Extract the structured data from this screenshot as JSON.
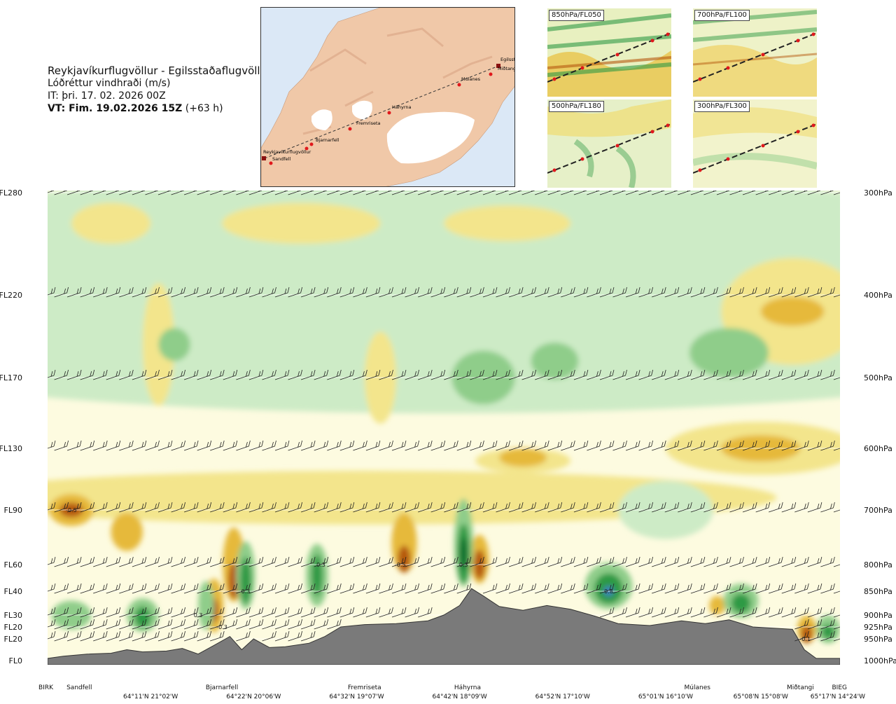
{
  "header": {
    "title": "Reykjavíkurflugvöllur - Egilsstaðaflugvöllur",
    "subtitle": "Lóðréttur vindhraði (m/s)",
    "it_line": "IT: þri. 17. 02. 2026 00Z",
    "vt_bold": "VT: Fim. 19.02.2026 15Z",
    "vt_offset": "(+63 h)"
  },
  "route_map": {
    "stations": [
      "Reykjavíkurflugvöllur",
      "Sandfell",
      "Bjarnarfell",
      "Fremriseta",
      "Háhyrna",
      "Múlanes",
      "Miðtangi",
      "Egilsst"
    ]
  },
  "insets": [
    {
      "label": "850hPa/FL050"
    },
    {
      "label": "700hPa/FL100"
    },
    {
      "label": "500hPa/FL180"
    },
    {
      "label": "300hPa/FL300"
    }
  ],
  "colors": {
    "terrain": "#7a7a7a",
    "strong_down": "#b5590f",
    "moderate_down": "#e6b93a",
    "weak_down": "#f3e58c",
    "neutral": "#fdfbe0",
    "weak_up": "#cdebc6",
    "moderate_up": "#8fcd8a",
    "strong_up": "#2f9a44",
    "very_strong_up": "#0c6a2c",
    "extreme_up": "#3d7fc0",
    "map_land": "#f0c8a8",
    "map_sea": "#dbe8f6",
    "route_point": "#e0181c"
  },
  "chart_data": {
    "type": "heatmap",
    "quantity": "Lóðréttur vindhraði (m/s)",
    "left_axis": [
      {
        "label": "FL280",
        "hpa": 300
      },
      {
        "label": "FL220",
        "hpa": 400
      },
      {
        "label": "FL170",
        "hpa": 500
      },
      {
        "label": "FL130",
        "hpa": 600
      },
      {
        "label": "FL90",
        "hpa": 700
      },
      {
        "label": "FL60",
        "hpa": 800
      },
      {
        "label": "FL40",
        "hpa": 850
      },
      {
        "label": "FL30",
        "hpa": 900
      },
      {
        "label": "FL20",
        "hpa": 925
      },
      {
        "label": "FL20",
        "hpa": 950
      },
      {
        "label": "FL0",
        "hpa": 1000
      }
    ],
    "right_axis": [
      "300hPa",
      "400hPa",
      "500hPa",
      "600hPa",
      "700hPa",
      "800hPa",
      "850hPa",
      "900hPa",
      "925hPa",
      "950hPa",
      "1000hPa"
    ],
    "stations": [
      {
        "name": "BIRK",
        "pos": 0.0
      },
      {
        "name": "Sandfell",
        "pos": 0.04
      },
      {
        "name": "Bjarnarfell",
        "pos": 0.22
      },
      {
        "name": "Fremriseta",
        "pos": 0.4
      },
      {
        "name": "Háhyrna",
        "pos": 0.53
      },
      {
        "name": "Múlanes",
        "pos": 0.82
      },
      {
        "name": "Miðtangi",
        "pos": 0.95
      },
      {
        "name": "BIEG",
        "pos": 1.0
      }
    ],
    "coordinates": [
      {
        "label": "64°11'N 21°02'W",
        "pos": 0.13
      },
      {
        "label": "64°22'N 20°06'W",
        "pos": 0.26
      },
      {
        "label": "64°32'N 19°07'W",
        "pos": 0.39
      },
      {
        "label": "64°42'N 18°09'W",
        "pos": 0.52
      },
      {
        "label": "64°52'N 17°10'W",
        "pos": 0.65
      },
      {
        "label": "65°01'N 16°10'W",
        "pos": 0.78
      },
      {
        "label": "65°08'N 15°08'W",
        "pos": 0.9
      },
      {
        "label": "65°17'N 14°24'W",
        "pos": 1.0
      }
    ],
    "contour_labels": [
      {
        "text": "-0.5",
        "pos": 0.03,
        "hpa": 700
      },
      {
        "text": "0.3",
        "pos": 0.19,
        "hpa": 900
      },
      {
        "text": "-0.3",
        "pos": 0.22,
        "hpa": 925
      },
      {
        "text": "0.3",
        "pos": 0.25,
        "hpa": 850
      },
      {
        "text": "0.3",
        "pos": 0.345,
        "hpa": 800
      },
      {
        "text": "-0.5",
        "pos": 0.445,
        "hpa": 800
      },
      {
        "text": "0.3",
        "pos": 0.525,
        "hpa": 800
      },
      {
        "text": "0.8",
        "pos": 0.708,
        "hpa": 850
      },
      {
        "text": "-0.1",
        "pos": 0.956,
        "hpa": 950
      }
    ],
    "terrain_profile": [
      {
        "pos": 0.0,
        "hpa": 995
      },
      {
        "pos": 0.02,
        "hpa": 990
      },
      {
        "pos": 0.05,
        "hpa": 985
      },
      {
        "pos": 0.08,
        "hpa": 983
      },
      {
        "pos": 0.1,
        "hpa": 975
      },
      {
        "pos": 0.12,
        "hpa": 980
      },
      {
        "pos": 0.15,
        "hpa": 978
      },
      {
        "pos": 0.17,
        "hpa": 972
      },
      {
        "pos": 0.19,
        "hpa": 985
      },
      {
        "pos": 0.21,
        "hpa": 965
      },
      {
        "pos": 0.23,
        "hpa": 945
      },
      {
        "pos": 0.245,
        "hpa": 975
      },
      {
        "pos": 0.26,
        "hpa": 950
      },
      {
        "pos": 0.28,
        "hpa": 970
      },
      {
        "pos": 0.3,
        "hpa": 968
      },
      {
        "pos": 0.33,
        "hpa": 960
      },
      {
        "pos": 0.35,
        "hpa": 945
      },
      {
        "pos": 0.37,
        "hpa": 925
      },
      {
        "pos": 0.4,
        "hpa": 920
      },
      {
        "pos": 0.44,
        "hpa": 918
      },
      {
        "pos": 0.48,
        "hpa": 912
      },
      {
        "pos": 0.5,
        "hpa": 900
      },
      {
        "pos": 0.52,
        "hpa": 880
      },
      {
        "pos": 0.535,
        "hpa": 845
      },
      {
        "pos": 0.55,
        "hpa": 860
      },
      {
        "pos": 0.57,
        "hpa": 882
      },
      {
        "pos": 0.6,
        "hpa": 890
      },
      {
        "pos": 0.63,
        "hpa": 880
      },
      {
        "pos": 0.66,
        "hpa": 888
      },
      {
        "pos": 0.69,
        "hpa": 902
      },
      {
        "pos": 0.72,
        "hpa": 918
      },
      {
        "pos": 0.76,
        "hpa": 922
      },
      {
        "pos": 0.8,
        "hpa": 912
      },
      {
        "pos": 0.83,
        "hpa": 918
      },
      {
        "pos": 0.86,
        "hpa": 910
      },
      {
        "pos": 0.89,
        "hpa": 925
      },
      {
        "pos": 0.92,
        "hpa": 928
      },
      {
        "pos": 0.94,
        "hpa": 930
      },
      {
        "pos": 0.955,
        "hpa": 975
      },
      {
        "pos": 0.97,
        "hpa": 995
      },
      {
        "pos": 1.0,
        "hpa": 995
      }
    ],
    "regions": [
      {
        "type": "weak_up",
        "pos": 0.5,
        "hpa": 400,
        "w": 1.0,
        "h": 260
      },
      {
        "type": "weak_down",
        "pos": 0.08,
        "hpa": 330,
        "w": 0.05,
        "h": 40
      },
      {
        "type": "weak_down",
        "pos": 0.32,
        "hpa": 330,
        "w": 0.1,
        "h": 40
      },
      {
        "type": "weak_down",
        "pos": 0.58,
        "hpa": 330,
        "w": 0.08,
        "h": 35
      },
      {
        "type": "weak_down",
        "pos": 0.94,
        "hpa": 420,
        "w": 0.09,
        "h": 120
      },
      {
        "type": "moderate_down",
        "pos": 0.94,
        "hpa": 420,
        "w": 0.04,
        "h": 35
      },
      {
        "type": "weak_down",
        "pos": 0.14,
        "hpa": 460,
        "w": 0.02,
        "h": 150
      },
      {
        "type": "weak_down",
        "pos": 0.42,
        "hpa": 500,
        "w": 0.02,
        "h": 120
      },
      {
        "type": "moderate_up",
        "pos": 0.55,
        "hpa": 500,
        "w": 0.04,
        "h": 70
      },
      {
        "type": "moderate_up",
        "pos": 0.64,
        "hpa": 480,
        "w": 0.03,
        "h": 45
      },
      {
        "type": "moderate_up",
        "pos": 0.86,
        "hpa": 470,
        "w": 0.05,
        "h": 60
      },
      {
        "type": "moderate_up",
        "pos": 0.16,
        "hpa": 460,
        "w": 0.02,
        "h": 40
      },
      {
        "type": "weak_down",
        "pos": 0.4,
        "hpa": 680,
        "w": 0.52,
        "h": 90
      },
      {
        "type": "weak_down",
        "pos": 0.6,
        "hpa": 620,
        "w": 0.06,
        "h": 40
      },
      {
        "type": "moderate_down",
        "pos": 0.6,
        "hpa": 615,
        "w": 0.03,
        "h": 30
      },
      {
        "type": "weak_down",
        "pos": 0.9,
        "hpa": 600,
        "w": 0.12,
        "h": 80
      },
      {
        "type": "moderate_down",
        "pos": 0.9,
        "hpa": 600,
        "w": 0.05,
        "h": 40
      },
      {
        "type": "weak_up",
        "pos": 0.78,
        "hpa": 700,
        "w": 0.06,
        "h": 100
      },
      {
        "type": "moderate_down",
        "pos": 0.03,
        "hpa": 700,
        "w": 0.028,
        "h": 55
      },
      {
        "type": "strong_down",
        "pos": 0.03,
        "hpa": 700,
        "w": 0.015,
        "h": 25
      },
      {
        "type": "moderate_down",
        "pos": 0.1,
        "hpa": 740,
        "w": 0.02,
        "h": 70
      },
      {
        "type": "moderate_down",
        "pos": 0.21,
        "hpa": 880,
        "w": 0.012,
        "h": 110
      },
      {
        "type": "strong_down",
        "pos": 0.21,
        "hpa": 890,
        "w": 0.006,
        "h": 50
      },
      {
        "type": "moderate_down",
        "pos": 0.235,
        "hpa": 800,
        "w": 0.014,
        "h": 140
      },
      {
        "type": "strong_down",
        "pos": 0.235,
        "hpa": 830,
        "w": 0.007,
        "h": 70
      },
      {
        "type": "moderate_down",
        "pos": 0.45,
        "hpa": 760,
        "w": 0.016,
        "h": 110
      },
      {
        "type": "strong_down",
        "pos": 0.45,
        "hpa": 790,
        "w": 0.008,
        "h": 50
      },
      {
        "type": "moderate_down",
        "pos": 0.545,
        "hpa": 790,
        "w": 0.012,
        "h": 90
      },
      {
        "type": "strong_down",
        "pos": 0.545,
        "hpa": 800,
        "w": 0.007,
        "h": 55
      },
      {
        "type": "moderate_down",
        "pos": 0.845,
        "hpa": 880,
        "w": 0.01,
        "h": 40
      },
      {
        "type": "moderate_down",
        "pos": 0.958,
        "hpa": 930,
        "w": 0.012,
        "h": 60
      },
      {
        "type": "strong_down",
        "pos": 0.958,
        "hpa": 940,
        "w": 0.007,
        "h": 40
      },
      {
        "type": "moderate_up",
        "pos": 0.03,
        "hpa": 900,
        "w": 0.025,
        "h": 60
      },
      {
        "type": "moderate_up",
        "pos": 0.12,
        "hpa": 900,
        "w": 0.02,
        "h": 70
      },
      {
        "type": "strong_up",
        "pos": 0.12,
        "hpa": 905,
        "w": 0.01,
        "h": 45
      },
      {
        "type": "moderate_up",
        "pos": 0.2,
        "hpa": 880,
        "w": 0.01,
        "h": 100
      },
      {
        "type": "moderate_up",
        "pos": 0.25,
        "hpa": 820,
        "w": 0.012,
        "h": 130
      },
      {
        "type": "strong_up",
        "pos": 0.25,
        "hpa": 830,
        "w": 0.007,
        "h": 90
      },
      {
        "type": "moderate_up",
        "pos": 0.34,
        "hpa": 820,
        "w": 0.014,
        "h": 120
      },
      {
        "type": "strong_up",
        "pos": 0.34,
        "hpa": 820,
        "w": 0.007,
        "h": 80
      },
      {
        "type": "moderate_up",
        "pos": 0.525,
        "hpa": 760,
        "w": 0.012,
        "h": 160
      },
      {
        "type": "strong_up",
        "pos": 0.525,
        "hpa": 780,
        "w": 0.008,
        "h": 110
      },
      {
        "type": "very_strong_up",
        "pos": 0.525,
        "hpa": 780,
        "w": 0.004,
        "h": 60
      },
      {
        "type": "moderate_up",
        "pos": 0.708,
        "hpa": 840,
        "w": 0.03,
        "h": 90
      },
      {
        "type": "strong_up",
        "pos": 0.708,
        "hpa": 845,
        "w": 0.018,
        "h": 60
      },
      {
        "type": "extreme_up",
        "pos": 0.708,
        "hpa": 850,
        "w": 0.006,
        "h": 20
      },
      {
        "type": "moderate_up",
        "pos": 0.875,
        "hpa": 870,
        "w": 0.022,
        "h": 70
      },
      {
        "type": "strong_up",
        "pos": 0.875,
        "hpa": 875,
        "w": 0.012,
        "h": 40
      },
      {
        "type": "moderate_up",
        "pos": 0.985,
        "hpa": 930,
        "w": 0.015,
        "h": 60
      },
      {
        "type": "strong_up",
        "pos": 0.985,
        "hpa": 935,
        "w": 0.008,
        "h": 30
      }
    ]
  }
}
